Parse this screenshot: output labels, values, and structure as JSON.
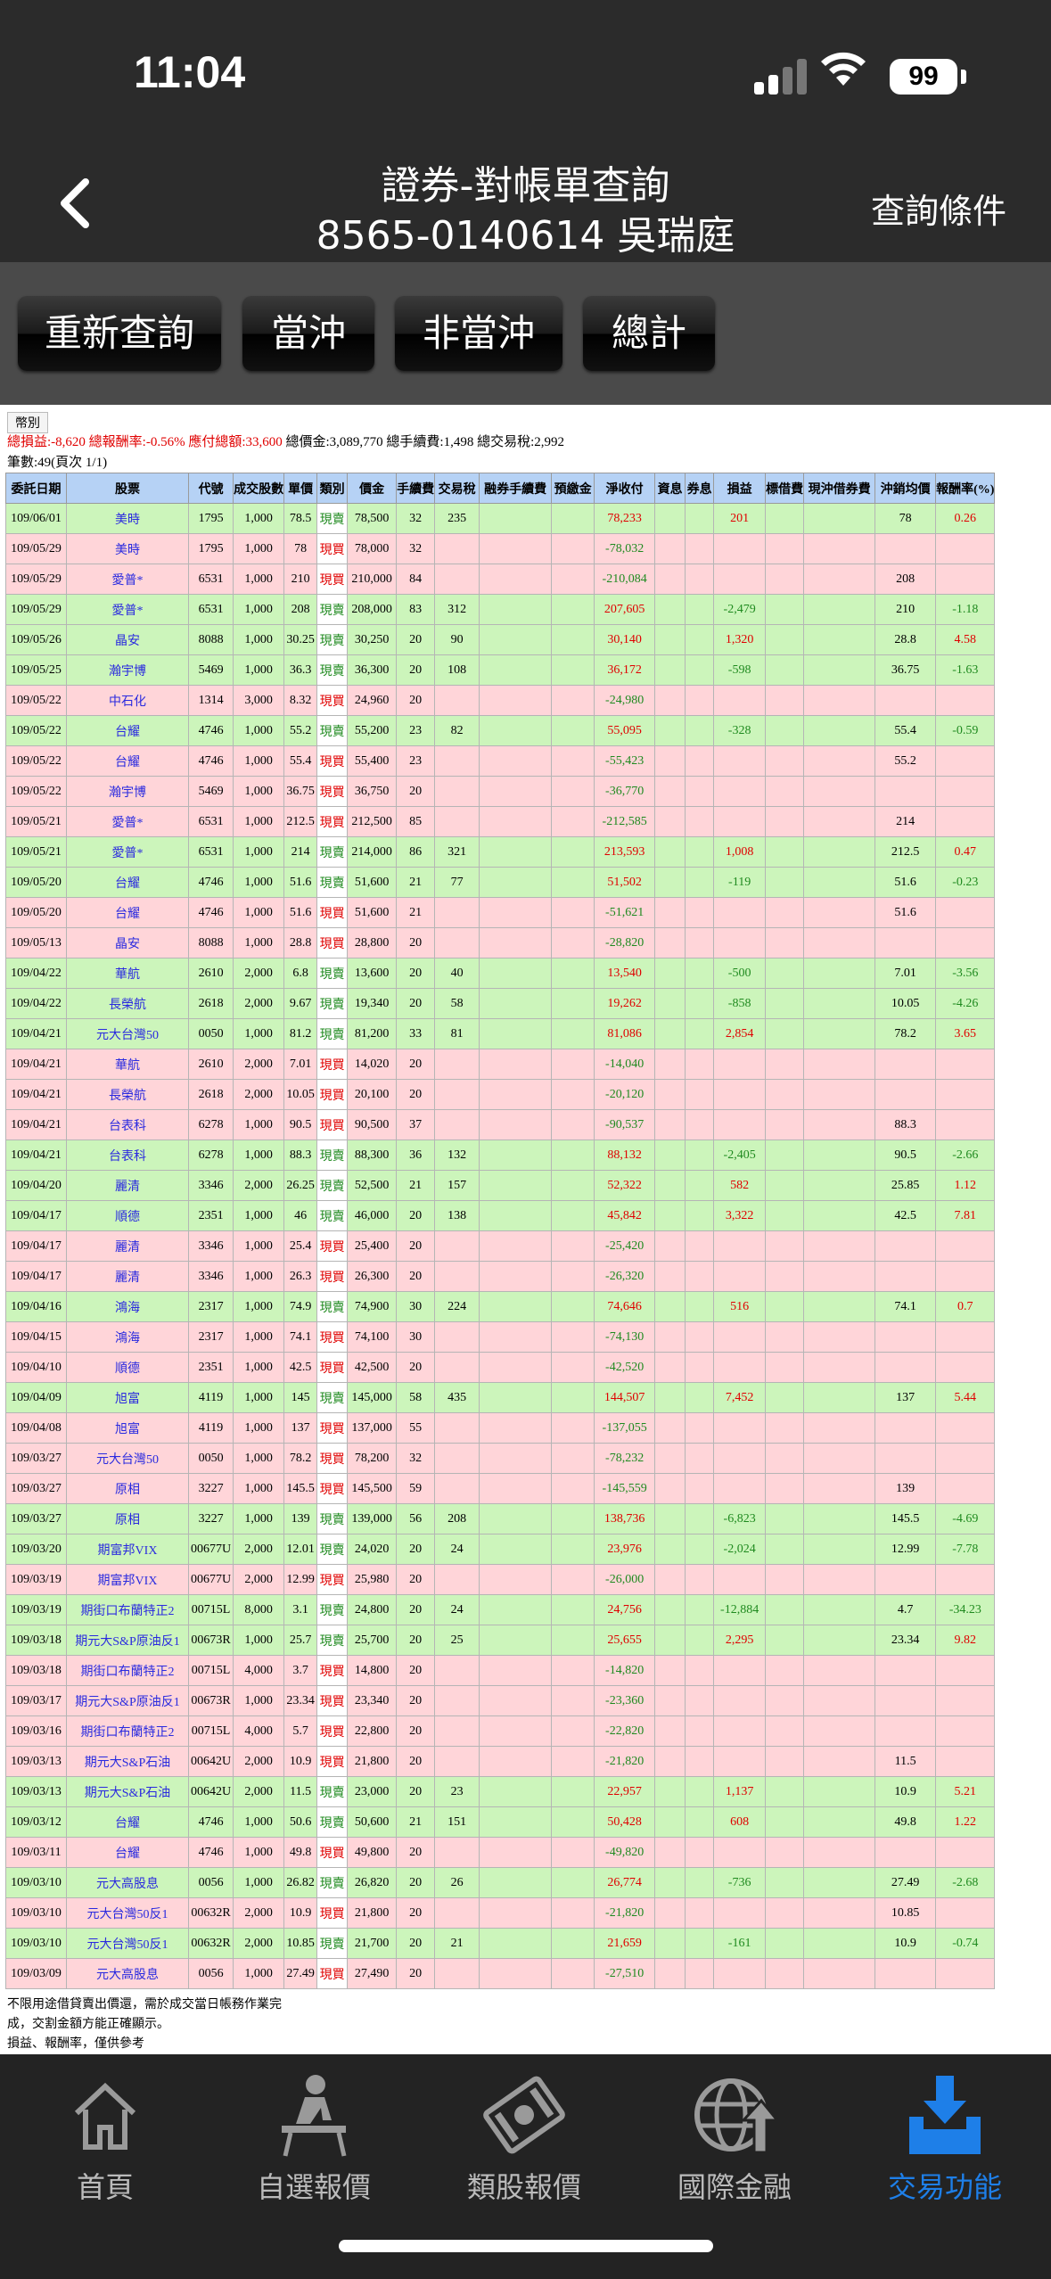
{
  "status": {
    "time": "11:04",
    "battery": "99"
  },
  "header": {
    "title": "證券-對帳單查詢",
    "account": "8565-0140614 吳瑞庭",
    "query_label": "查詢條件"
  },
  "toolbar": {
    "buttons": [
      "重新查詢",
      "當沖",
      "非當沖",
      "總計"
    ]
  },
  "summary": {
    "currency": "幣別",
    "profit_label": "總損益:-8,620 總報酬率:-0.56% 應付總額:33,600",
    "rest": " 總價金:3,089,770 總手續費:1,498 總交易稅:2,992",
    "count": "筆數:49(頁次 1/1)"
  },
  "table": {
    "headers": [
      "委託日期",
      "股票",
      "代號",
      "成交股數",
      "單價",
      "類別",
      "價金",
      "手續費",
      "交易稅",
      "融券手續費",
      "預繳金",
      "淨收付",
      "資息",
      "券息",
      "損益",
      "標借費",
      "現沖借券費",
      "沖銷均價",
      "報酬率(%)"
    ],
    "rows": [
      [
        "g",
        "109/06/01",
        "美時",
        "1795",
        "1,000",
        "78.5",
        "現賣",
        "78,500",
        "32",
        "235",
        "",
        "",
        "78,233",
        "",
        "",
        "201",
        "",
        "",
        "78",
        "0.26"
      ],
      [
        "r",
        "109/05/29",
        "美時",
        "1795",
        "1,000",
        "78",
        "現買",
        "78,000",
        "32",
        "",
        "",
        "",
        "-78,032",
        "",
        "",
        "",
        "",
        "",
        "",
        ""
      ],
      [
        "r",
        "109/05/29",
        "愛普*",
        "6531",
        "1,000",
        "210",
        "現買",
        "210,000",
        "84",
        "",
        "",
        "",
        "-210,084",
        "",
        "",
        "",
        "",
        "",
        "208",
        ""
      ],
      [
        "g",
        "109/05/29",
        "愛普*",
        "6531",
        "1,000",
        "208",
        "現賣",
        "208,000",
        "83",
        "312",
        "",
        "",
        "207,605",
        "",
        "",
        "-2,479",
        "",
        "",
        "210",
        "-1.18"
      ],
      [
        "g",
        "109/05/26",
        "晶安",
        "8088",
        "1,000",
        "30.25",
        "現賣",
        "30,250",
        "20",
        "90",
        "",
        "",
        "30,140",
        "",
        "",
        "1,320",
        "",
        "",
        "28.8",
        "4.58"
      ],
      [
        "g",
        "109/05/25",
        "瀚宇博",
        "5469",
        "1,000",
        "36.3",
        "現賣",
        "36,300",
        "20",
        "108",
        "",
        "",
        "36,172",
        "",
        "",
        "-598",
        "",
        "",
        "36.75",
        "-1.63"
      ],
      [
        "r",
        "109/05/22",
        "中石化",
        "1314",
        "3,000",
        "8.32",
        "現買",
        "24,960",
        "20",
        "",
        "",
        "",
        "-24,980",
        "",
        "",
        "",
        "",
        "",
        "",
        ""
      ],
      [
        "g",
        "109/05/22",
        "台耀",
        "4746",
        "1,000",
        "55.2",
        "現賣",
        "55,200",
        "23",
        "82",
        "",
        "",
        "55,095",
        "",
        "",
        "-328",
        "",
        "",
        "55.4",
        "-0.59"
      ],
      [
        "r",
        "109/05/22",
        "台耀",
        "4746",
        "1,000",
        "55.4",
        "現買",
        "55,400",
        "23",
        "",
        "",
        "",
        "-55,423",
        "",
        "",
        "",
        "",
        "",
        "55.2",
        ""
      ],
      [
        "r",
        "109/05/22",
        "瀚宇博",
        "5469",
        "1,000",
        "36.75",
        "現買",
        "36,750",
        "20",
        "",
        "",
        "",
        "-36,770",
        "",
        "",
        "",
        "",
        "",
        "",
        ""
      ],
      [
        "r",
        "109/05/21",
        "愛普*",
        "6531",
        "1,000",
        "212.5",
        "現買",
        "212,500",
        "85",
        "",
        "",
        "",
        "-212,585",
        "",
        "",
        "",
        "",
        "",
        "214",
        ""
      ],
      [
        "g",
        "109/05/21",
        "愛普*",
        "6531",
        "1,000",
        "214",
        "現賣",
        "214,000",
        "86",
        "321",
        "",
        "",
        "213,593",
        "",
        "",
        "1,008",
        "",
        "",
        "212.5",
        "0.47"
      ],
      [
        "g",
        "109/05/20",
        "台耀",
        "4746",
        "1,000",
        "51.6",
        "現賣",
        "51,600",
        "21",
        "77",
        "",
        "",
        "51,502",
        "",
        "",
        "-119",
        "",
        "",
        "51.6",
        "-0.23"
      ],
      [
        "r",
        "109/05/20",
        "台耀",
        "4746",
        "1,000",
        "51.6",
        "現買",
        "51,600",
        "21",
        "",
        "",
        "",
        "-51,621",
        "",
        "",
        "",
        "",
        "",
        "51.6",
        ""
      ],
      [
        "r",
        "109/05/13",
        "晶安",
        "8088",
        "1,000",
        "28.8",
        "現買",
        "28,800",
        "20",
        "",
        "",
        "",
        "-28,820",
        "",
        "",
        "",
        "",
        "",
        "",
        ""
      ],
      [
        "g",
        "109/04/22",
        "華航",
        "2610",
        "2,000",
        "6.8",
        "現賣",
        "13,600",
        "20",
        "40",
        "",
        "",
        "13,540",
        "",
        "",
        "-500",
        "",
        "",
        "7.01",
        "-3.56"
      ],
      [
        "g",
        "109/04/22",
        "長榮航",
        "2618",
        "2,000",
        "9.67",
        "現賣",
        "19,340",
        "20",
        "58",
        "",
        "",
        "19,262",
        "",
        "",
        "-858",
        "",
        "",
        "10.05",
        "-4.26"
      ],
      [
        "g",
        "109/04/21",
        "元大台灣50",
        "0050",
        "1,000",
        "81.2",
        "現賣",
        "81,200",
        "33",
        "81",
        "",
        "",
        "81,086",
        "",
        "",
        "2,854",
        "",
        "",
        "78.2",
        "3.65"
      ],
      [
        "r",
        "109/04/21",
        "華航",
        "2610",
        "2,000",
        "7.01",
        "現買",
        "14,020",
        "20",
        "",
        "",
        "",
        "-14,040",
        "",
        "",
        "",
        "",
        "",
        "",
        ""
      ],
      [
        "r",
        "109/04/21",
        "長榮航",
        "2618",
        "2,000",
        "10.05",
        "現買",
        "20,100",
        "20",
        "",
        "",
        "",
        "-20,120",
        "",
        "",
        "",
        "",
        "",
        "",
        ""
      ],
      [
        "r",
        "109/04/21",
        "台表科",
        "6278",
        "1,000",
        "90.5",
        "現買",
        "90,500",
        "37",
        "",
        "",
        "",
        "-90,537",
        "",
        "",
        "",
        "",
        "",
        "88.3",
        ""
      ],
      [
        "g",
        "109/04/21",
        "台表科",
        "6278",
        "1,000",
        "88.3",
        "現賣",
        "88,300",
        "36",
        "132",
        "",
        "",
        "88,132",
        "",
        "",
        "-2,405",
        "",
        "",
        "90.5",
        "-2.66"
      ],
      [
        "g",
        "109/04/20",
        "麗清",
        "3346",
        "2,000",
        "26.25",
        "現賣",
        "52,500",
        "21",
        "157",
        "",
        "",
        "52,322",
        "",
        "",
        "582",
        "",
        "",
        "25.85",
        "1.12"
      ],
      [
        "g",
        "109/04/17",
        "順德",
        "2351",
        "1,000",
        "46",
        "現賣",
        "46,000",
        "20",
        "138",
        "",
        "",
        "45,842",
        "",
        "",
        "3,322",
        "",
        "",
        "42.5",
        "7.81"
      ],
      [
        "r",
        "109/04/17",
        "麗清",
        "3346",
        "1,000",
        "25.4",
        "現買",
        "25,400",
        "20",
        "",
        "",
        "",
        "-25,420",
        "",
        "",
        "",
        "",
        "",
        "",
        ""
      ],
      [
        "r",
        "109/04/17",
        "麗清",
        "3346",
        "1,000",
        "26.3",
        "現買",
        "26,300",
        "20",
        "",
        "",
        "",
        "-26,320",
        "",
        "",
        "",
        "",
        "",
        "",
        ""
      ],
      [
        "g",
        "109/04/16",
        "鴻海",
        "2317",
        "1,000",
        "74.9",
        "現賣",
        "74,900",
        "30",
        "224",
        "",
        "",
        "74,646",
        "",
        "",
        "516",
        "",
        "",
        "74.1",
        "0.7"
      ],
      [
        "r",
        "109/04/15",
        "鴻海",
        "2317",
        "1,000",
        "74.1",
        "現買",
        "74,100",
        "30",
        "",
        "",
        "",
        "-74,130",
        "",
        "",
        "",
        "",
        "",
        "",
        ""
      ],
      [
        "r",
        "109/04/10",
        "順德",
        "2351",
        "1,000",
        "42.5",
        "現買",
        "42,500",
        "20",
        "",
        "",
        "",
        "-42,520",
        "",
        "",
        "",
        "",
        "",
        "",
        ""
      ],
      [
        "g",
        "109/04/09",
        "旭富",
        "4119",
        "1,000",
        "145",
        "現賣",
        "145,000",
        "58",
        "435",
        "",
        "",
        "144,507",
        "",
        "",
        "7,452",
        "",
        "",
        "137",
        "5.44"
      ],
      [
        "r",
        "109/04/08",
        "旭富",
        "4119",
        "1,000",
        "137",
        "現買",
        "137,000",
        "55",
        "",
        "",
        "",
        "-137,055",
        "",
        "",
        "",
        "",
        "",
        "",
        ""
      ],
      [
        "r",
        "109/03/27",
        "元大台灣50",
        "0050",
        "1,000",
        "78.2",
        "現買",
        "78,200",
        "32",
        "",
        "",
        "",
        "-78,232",
        "",
        "",
        "",
        "",
        "",
        "",
        ""
      ],
      [
        "r",
        "109/03/27",
        "原相",
        "3227",
        "1,000",
        "145.5",
        "現買",
        "145,500",
        "59",
        "",
        "",
        "",
        "-145,559",
        "",
        "",
        "",
        "",
        "",
        "139",
        ""
      ],
      [
        "g",
        "109/03/27",
        "原相",
        "3227",
        "1,000",
        "139",
        "現賣",
        "139,000",
        "56",
        "208",
        "",
        "",
        "138,736",
        "",
        "",
        "-6,823",
        "",
        "",
        "145.5",
        "-4.69"
      ],
      [
        "g",
        "109/03/20",
        "期富邦VIX",
        "00677U",
        "2,000",
        "12.01",
        "現賣",
        "24,020",
        "20",
        "24",
        "",
        "",
        "23,976",
        "",
        "",
        "-2,024",
        "",
        "",
        "12.99",
        "-7.78"
      ],
      [
        "r",
        "109/03/19",
        "期富邦VIX",
        "00677U",
        "2,000",
        "12.99",
        "現買",
        "25,980",
        "20",
        "",
        "",
        "",
        "-26,000",
        "",
        "",
        "",
        "",
        "",
        "",
        ""
      ],
      [
        "g",
        "109/03/19",
        "期街口布蘭特正2",
        "00715L",
        "8,000",
        "3.1",
        "現賣",
        "24,800",
        "20",
        "24",
        "",
        "",
        "24,756",
        "",
        "",
        "-12,884",
        "",
        "",
        "4.7",
        "-34.23"
      ],
      [
        "g",
        "109/03/18",
        "期元大S&P原油反1",
        "00673R",
        "1,000",
        "25.7",
        "現賣",
        "25,700",
        "20",
        "25",
        "",
        "",
        "25,655",
        "",
        "",
        "2,295",
        "",
        "",
        "23.34",
        "9.82"
      ],
      [
        "r",
        "109/03/18",
        "期街口布蘭特正2",
        "00715L",
        "4,000",
        "3.7",
        "現買",
        "14,800",
        "20",
        "",
        "",
        "",
        "-14,820",
        "",
        "",
        "",
        "",
        "",
        "",
        ""
      ],
      [
        "r",
        "109/03/17",
        "期元大S&P原油反1",
        "00673R",
        "1,000",
        "23.34",
        "現買",
        "23,340",
        "20",
        "",
        "",
        "",
        "-23,360",
        "",
        "",
        "",
        "",
        "",
        "",
        ""
      ],
      [
        "r",
        "109/03/16",
        "期街口布蘭特正2",
        "00715L",
        "4,000",
        "5.7",
        "現買",
        "22,800",
        "20",
        "",
        "",
        "",
        "-22,820",
        "",
        "",
        "",
        "",
        "",
        "",
        ""
      ],
      [
        "r",
        "109/03/13",
        "期元大S&P石油",
        "00642U",
        "2,000",
        "10.9",
        "現買",
        "21,800",
        "20",
        "",
        "",
        "",
        "-21,820",
        "",
        "",
        "",
        "",
        "",
        "11.5",
        ""
      ],
      [
        "g",
        "109/03/13",
        "期元大S&P石油",
        "00642U",
        "2,000",
        "11.5",
        "現賣",
        "23,000",
        "20",
        "23",
        "",
        "",
        "22,957",
        "",
        "",
        "1,137",
        "",
        "",
        "10.9",
        "5.21"
      ],
      [
        "g",
        "109/03/12",
        "台耀",
        "4746",
        "1,000",
        "50.6",
        "現賣",
        "50,600",
        "21",
        "151",
        "",
        "",
        "50,428",
        "",
        "",
        "608",
        "",
        "",
        "49.8",
        "1.22"
      ],
      [
        "r",
        "109/03/11",
        "台耀",
        "4746",
        "1,000",
        "49.8",
        "現買",
        "49,800",
        "20",
        "",
        "",
        "",
        "-49,820",
        "",
        "",
        "",
        "",
        "",
        "",
        ""
      ],
      [
        "g",
        "109/03/10",
        "元大高股息",
        "0056",
        "1,000",
        "26.82",
        "現賣",
        "26,820",
        "20",
        "26",
        "",
        "",
        "26,774",
        "",
        "",
        "-736",
        "",
        "",
        "27.49",
        "-2.68"
      ],
      [
        "r",
        "109/03/10",
        "元大台灣50反1",
        "00632R",
        "2,000",
        "10.9",
        "現買",
        "21,800",
        "20",
        "",
        "",
        "",
        "-21,820",
        "",
        "",
        "",
        "",
        "",
        "10.85",
        ""
      ],
      [
        "g",
        "109/03/10",
        "元大台灣50反1",
        "00632R",
        "2,000",
        "10.85",
        "現賣",
        "21,700",
        "20",
        "21",
        "",
        "",
        "21,659",
        "",
        "",
        "-161",
        "",
        "",
        "10.9",
        "-0.74"
      ],
      [
        "r",
        "109/03/09",
        "元大高股息",
        "0056",
        "1,000",
        "27.49",
        "現買",
        "27,490",
        "20",
        "",
        "",
        "",
        "-27,510",
        "",
        "",
        "",
        "",
        "",
        "",
        ""
      ]
    ]
  },
  "notes": [
    "不限用途借貸賣出價還，需於成交當日帳務作業完",
    "成，交割金額方能正確顯示。",
    "損益、報酬率，僅供參考"
  ],
  "tabbar": {
    "items": [
      {
        "label": "首頁",
        "icon": "home-icon"
      },
      {
        "label": "自選報價",
        "icon": "watchlist-icon"
      },
      {
        "label": "類股報價",
        "icon": "sector-icon"
      },
      {
        "label": "國際金融",
        "icon": "globe-icon"
      },
      {
        "label": "交易功能",
        "icon": "trade-icon"
      }
    ],
    "active": 4
  },
  "colors": {
    "header_bg": "#2b2b2b",
    "toolbar_bg": "#4a4a4a",
    "buy_row": "#ffd5d9",
    "sell_row": "#ccf5bb",
    "table_header": "#b6d2f5",
    "active_tab": "#1e7fe8"
  }
}
